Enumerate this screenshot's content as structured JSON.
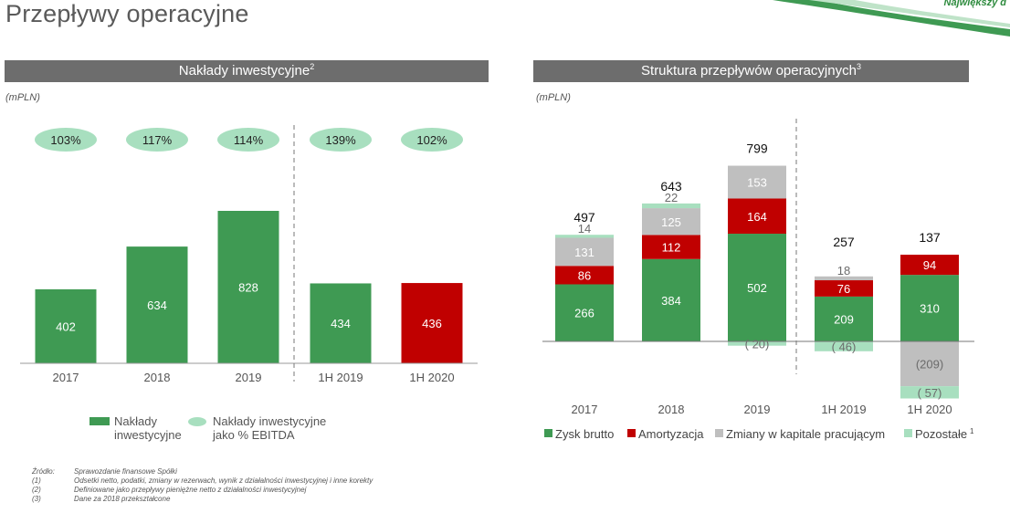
{
  "page": {
    "title": "Przepływy operacyjne",
    "corner_tag": "Największy d"
  },
  "colors": {
    "green": "#3f9a53",
    "red": "#c00000",
    "gray": "#bfbfbf",
    "mint": "#a8dfbf",
    "header": "#6d6d6d"
  },
  "left_panel": {
    "header": "Nakłady inwestycyjne",
    "header_sup": "2",
    "unit": "(mPLN)"
  },
  "right_panel": {
    "header": "Struktura przepływów operacyjnych",
    "header_sup": "3",
    "unit": "(mPLN)"
  },
  "chart_data": [
    {
      "type": "bar",
      "categories": [
        "2017",
        "2018",
        "2019",
        "1H 2019",
        "1H 2020"
      ],
      "series": [
        {
          "name": "Nakłady inwestycyjne",
          "values": [
            402,
            634,
            828,
            434,
            436
          ]
        },
        {
          "name": "Nakłady inwestycyjne jako % EBITDA",
          "values": [
            103,
            117,
            114,
            139,
            102
          ]
        }
      ],
      "pct_labels": [
        "103%",
        "117%",
        "114%",
        "139%",
        "102%"
      ],
      "highlight_index": 4,
      "divider_after_index": 2,
      "legend": [
        "Nakłady inwestycyjne",
        "Nakłady inwestycyjne jako % EBITDA"
      ],
      "ylim": [
        0,
        900
      ]
    },
    {
      "type": "bar",
      "stacked": true,
      "categories": [
        "2017",
        "2018",
        "2019",
        "1H 2019",
        "1H 2020"
      ],
      "series": [
        {
          "name": "Zysk brutto",
          "values": [
            266,
            384,
            502,
            209,
            310
          ]
        },
        {
          "name": "Amortyzacja",
          "values": [
            86,
            112,
            164,
            76,
            94
          ]
        },
        {
          "name": "Zmiany w kapitale pracującym",
          "values": [
            131,
            125,
            153,
            18,
            -209
          ]
        },
        {
          "name": "Pozostałe",
          "values": [
            14,
            22,
            -20,
            -46,
            -57
          ]
        }
      ],
      "labels": [
        [
          "266",
          "384",
          "502",
          "209",
          "310"
        ],
        [
          "86",
          "112",
          "164",
          "76",
          "94"
        ],
        [
          "131",
          "125",
          "153",
          "18",
          "(209)"
        ],
        [
          "14",
          "22",
          "( 20)",
          "( 46)",
          "( 57)"
        ]
      ],
      "totals": [
        497,
        643,
        799,
        257,
        137
      ],
      "divider_after_index": 2,
      "legend": [
        "Zysk brutto",
        "Amortyzacja",
        "Zmiany w kapitale pracującym",
        "Pozostałe"
      ],
      "legend_sup": "1",
      "ylim": [
        -270,
        850
      ]
    }
  ],
  "footnotes": [
    {
      "num": "Źródło:",
      "text": "Sprawozdanie finansowe Spółki"
    },
    {
      "num": "(1)",
      "text": "Odsetki netto, podatki, zmiany w rezerwach, wynik z działalności inwestycyjnej i inne korekty"
    },
    {
      "num": "(2)",
      "text": "Definiowane jako przepływy pieniężne netto z działalności inwestycyjnej"
    },
    {
      "num": "(3)",
      "text": "Dane za 2018 przekształcone"
    }
  ]
}
